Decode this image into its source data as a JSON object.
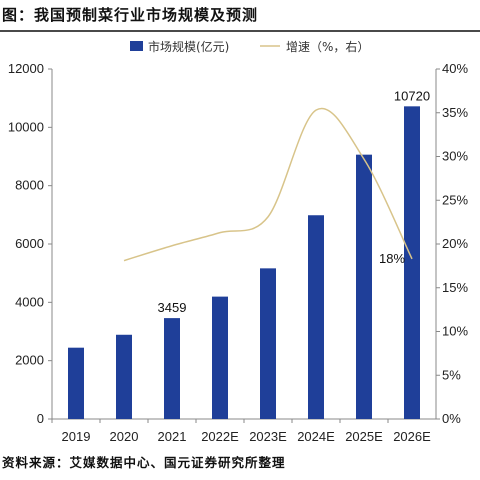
{
  "header": {
    "title": "图：我国预制菜行业市场规模及预测"
  },
  "footer": {
    "source": "资料来源：艾媒数据中心、国元证券研究所整理"
  },
  "chart_data": {
    "type": "bar",
    "categories": [
      "2019",
      "2020",
      "2021",
      "2022E",
      "2023E",
      "2024E",
      "2025E",
      "2026E"
    ],
    "series": [
      {
        "name": "市场规模(亿元)",
        "type": "bar",
        "axis": "left",
        "color": "#1f3f99",
        "values": [
          2445,
          2888,
          3459,
          4196,
          5165,
          6986,
          9063,
          10720
        ]
      },
      {
        "name": "增速（%，右）",
        "type": "line",
        "axis": "right",
        "color": "#d8c48a",
        "values": [
          null,
          18.1,
          19.8,
          21.3,
          23.1,
          35.3,
          29.7,
          18.3
        ]
      }
    ],
    "ylim_left": [
      0,
      12000
    ],
    "yticks_left": [
      "0",
      "2000",
      "4000",
      "6000",
      "8000",
      "10000",
      "12000"
    ],
    "ylim_right": [
      0,
      40
    ],
    "yticks_right": [
      "0%",
      "5%",
      "10%",
      "15%",
      "20%",
      "25%",
      "30%",
      "35%",
      "40%"
    ],
    "data_labels": [
      {
        "series": 0,
        "index": 2,
        "text": "3459"
      },
      {
        "series": 0,
        "index": 7,
        "text": "10720"
      },
      {
        "series": 1,
        "index": 7,
        "text": "18%"
      }
    ],
    "legend": "top",
    "grid": false
  }
}
